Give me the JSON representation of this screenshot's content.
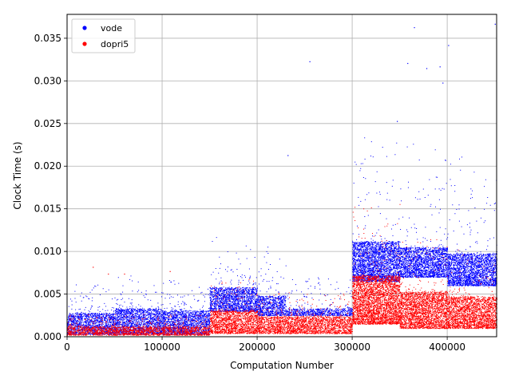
{
  "chart_data": {
    "type": "scatter",
    "xlabel": "Computation Number",
    "ylabel": "Clock Time (s)",
    "xlim": [
      0,
      452000
    ],
    "ylim": [
      0,
      0.0378
    ],
    "x_ticks": [
      0,
      100000,
      200000,
      300000,
      400000
    ],
    "x_tick_labels": [
      "0",
      "100000",
      "200000",
      "300000",
      "400000"
    ],
    "y_ticks": [
      0.0,
      0.005,
      0.01,
      0.015,
      0.02,
      0.025,
      0.03,
      0.035
    ],
    "y_tick_labels": [
      "0.000",
      "0.005",
      "0.010",
      "0.015",
      "0.020",
      "0.025",
      "0.030",
      "0.035"
    ],
    "grid": true,
    "legend_position": "top-left",
    "series": [
      {
        "name": "vode",
        "color": "#0000ff",
        "segments": [
          {
            "x_range": [
              0,
              50000
            ],
            "band": [
              0.0003,
              0.0028
            ]
          },
          {
            "x_range": [
              50000,
              100000
            ],
            "band": [
              0.0003,
              0.0033
            ]
          },
          {
            "x_range": [
              100000,
              150000
            ],
            "band": [
              0.0003,
              0.0031
            ]
          },
          {
            "x_range": [
              150000,
              200000
            ],
            "band": [
              0.003,
              0.0058
            ]
          },
          {
            "x_range": [
              200000,
              230000
            ],
            "band": [
              0.0025,
              0.0048
            ]
          },
          {
            "x_range": [
              230000,
              300000
            ],
            "band": [
              0.0025,
              0.0033
            ]
          },
          {
            "x_range": [
              300000,
              350000
            ],
            "band": [
              0.0065,
              0.0112
            ]
          },
          {
            "x_range": [
              350000,
              400000
            ],
            "band": [
              0.007,
              0.0105
            ]
          },
          {
            "x_range": [
              400000,
              452000
            ],
            "band": [
              0.006,
              0.0098
            ]
          }
        ],
        "outliers": [
          [
            358000,
            0.0321
          ],
          [
            365000,
            0.0363
          ],
          [
            378000,
            0.0315
          ],
          [
            392000,
            0.0317
          ],
          [
            401000,
            0.0342
          ],
          [
            450000,
            0.0367
          ],
          [
            255000,
            0.0323
          ],
          [
            232000,
            0.0213
          ],
          [
            395000,
            0.0298
          ],
          [
            347000,
            0.0253
          ]
        ]
      },
      {
        "name": "dopri5",
        "color": "#ff0000",
        "segments": [
          {
            "x_range": [
              0,
              150000
            ],
            "band": [
              0.0002,
              0.0012
            ]
          },
          {
            "x_range": [
              150000,
              200000
            ],
            "band": [
              0.0004,
              0.0031
            ]
          },
          {
            "x_range": [
              200000,
              300000
            ],
            "band": [
              0.0004,
              0.0024
            ]
          },
          {
            "x_range": [
              300000,
              350000
            ],
            "band": [
              0.0015,
              0.0072
            ]
          },
          {
            "x_range": [
              350000,
              400000
            ],
            "band": [
              0.001,
              0.0053
            ]
          },
          {
            "x_range": [
              400000,
              452000
            ],
            "band": [
              0.001,
              0.0047
            ]
          }
        ],
        "outliers": [
          [
            27000,
            0.0082
          ],
          [
            43000,
            0.0074
          ],
          [
            60000,
            0.0074
          ],
          [
            108000,
            0.0077
          ]
        ]
      }
    ]
  }
}
